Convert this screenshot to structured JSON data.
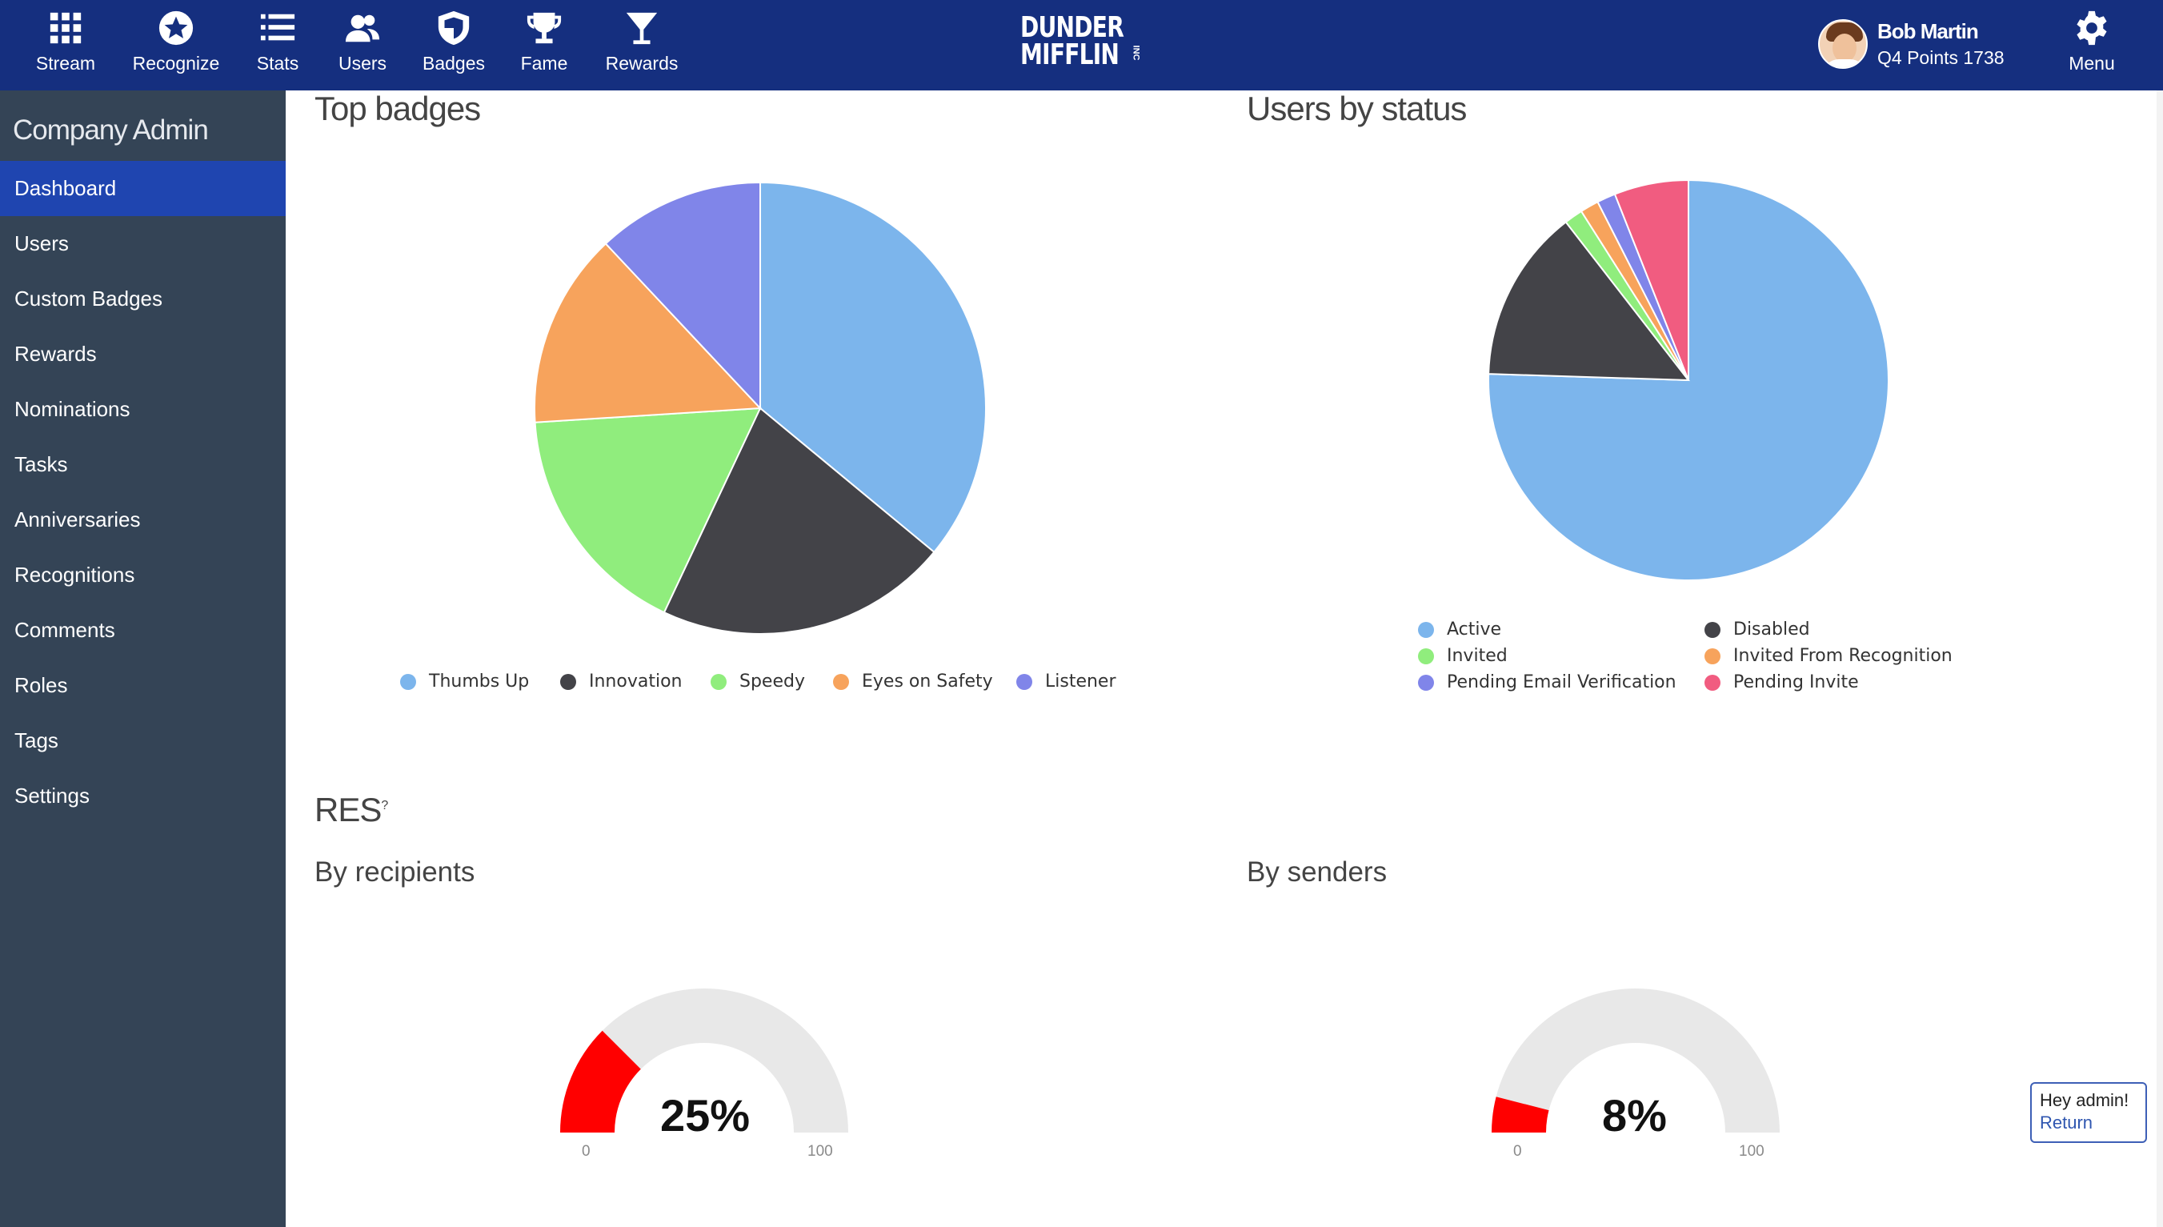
{
  "nav": {
    "items": [
      {
        "label": "Stream",
        "icon": "grid-icon"
      },
      {
        "label": "Recognize",
        "icon": "star-badge-icon"
      },
      {
        "label": "Stats",
        "icon": "list-icon"
      },
      {
        "label": "Users",
        "icon": "users-icon"
      },
      {
        "label": "Badges",
        "icon": "shield-icon"
      },
      {
        "label": "Fame",
        "icon": "trophy-icon"
      },
      {
        "label": "Rewards",
        "icon": "cocktail-icon"
      }
    ],
    "logo": {
      "line1": "DUNDER",
      "line2": "MIFFLIN",
      "suffix": "INC"
    },
    "user": {
      "name": "Bob Martin",
      "points": "Q4 Points 1738"
    },
    "menu_label": "Menu"
  },
  "sidebar": {
    "title": "Company Admin",
    "items": [
      {
        "label": "Dashboard",
        "active": true
      },
      {
        "label": "Users"
      },
      {
        "label": "Custom Badges"
      },
      {
        "label": "Rewards"
      },
      {
        "label": "Nominations"
      },
      {
        "label": "Tasks"
      },
      {
        "label": "Anniversaries"
      },
      {
        "label": "Recognitions"
      },
      {
        "label": "Comments"
      },
      {
        "label": "Roles"
      },
      {
        "label": "Tags"
      },
      {
        "label": "Settings"
      }
    ]
  },
  "main": {
    "top_badges_title": "Top badges",
    "users_by_status_title": "Users by status",
    "res_title": "RES",
    "res_superscript": "?",
    "by_recipients_title": "By recipients",
    "by_senders_title": "By senders"
  },
  "admin_box": {
    "greeting": "Hey admin!",
    "return_label": "Return"
  },
  "chart_data": [
    {
      "type": "pie",
      "title": "Top badges",
      "legend_position": "bottom",
      "categories": [
        "Thumbs Up",
        "Innovation",
        "Speedy",
        "Eyes on Safety",
        "Listener"
      ],
      "values": [
        36,
        21,
        17,
        14,
        12
      ],
      "colors": [
        "#7cb5ec",
        "#434348",
        "#90ed7d",
        "#f7a35c",
        "#8085e9"
      ]
    },
    {
      "type": "pie",
      "title": "Users by status",
      "legend_position": "bottom",
      "categories": [
        "Active",
        "Disabled",
        "Invited",
        "Invited From Recognition",
        "Pending Email Verification",
        "Pending Invite"
      ],
      "values": [
        75.5,
        14,
        1.5,
        1.5,
        1.5,
        6
      ],
      "colors": [
        "#7cb5ec",
        "#434348",
        "#90ed7d",
        "#f7a35c",
        "#8085e9",
        "#f15c80"
      ]
    },
    {
      "type": "gauge",
      "title": "By recipients",
      "value": 25,
      "display": "25%",
      "min": 0,
      "max": 100,
      "fill_color": "#ff0000",
      "track_color": "#e8e8e8"
    },
    {
      "type": "gauge",
      "title": "By senders",
      "value": 8,
      "display": "8%",
      "min": 0,
      "max": 100,
      "fill_color": "#ff0000",
      "track_color": "#e8e8e8"
    }
  ]
}
